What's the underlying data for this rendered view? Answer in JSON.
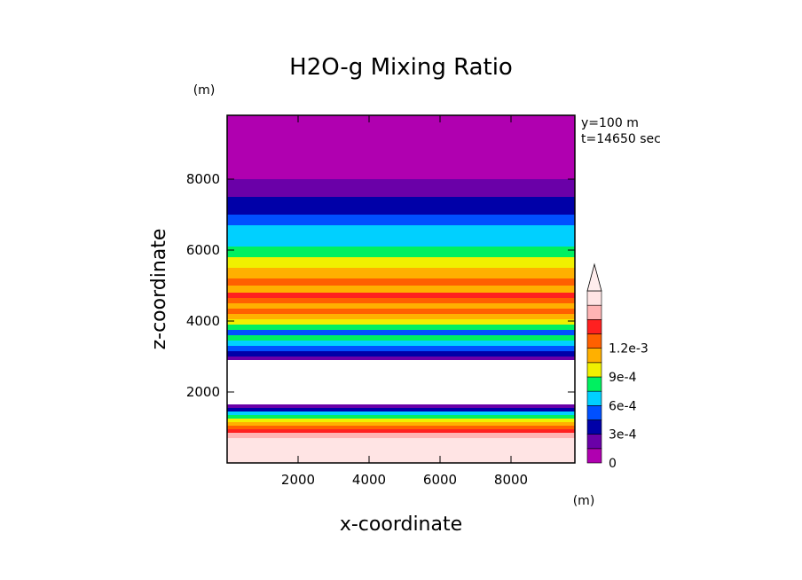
{
  "chart_data": {
    "type": "heatmap",
    "title": "H2O-g Mixing Ratio",
    "xlabel": "x-coordinate",
    "ylabel": "z-coordinate",
    "x_unit": "(m)",
    "y_unit": "(m)",
    "annotations": [
      "y=100 m",
      "t=14650 sec"
    ],
    "xlim": [
      0,
      9800
    ],
    "ylim": [
      0,
      9800
    ],
    "x_ticks": [
      2000,
      4000,
      6000,
      8000
    ],
    "x_tick_labels": [
      "2000",
      "4000",
      "6000",
      "8000"
    ],
    "y_ticks": [
      2000,
      4000,
      6000,
      8000
    ],
    "y_tick_labels": [
      "2000",
      "4000",
      "6000",
      "8000"
    ],
    "grid": false,
    "colorbar": {
      "position": "right",
      "extend": "max",
      "levels": [
        0,
        0.00015,
        0.0003,
        0.00045,
        0.0006,
        0.00075,
        0.0009,
        0.00105,
        0.0012
      ],
      "colors": [
        "#b000b0",
        "#6a00a8",
        "#0000a8",
        "#0050ff",
        "#00d0ff",
        "#00f060",
        "#f0f000",
        "#ffb000",
        "#ff6000",
        "#ff2020",
        "#ffb4b4",
        "#ffe4e4"
      ],
      "tick_values": [
        0,
        0.0003,
        0.0006,
        0.0009,
        0.0012
      ],
      "tick_labels": [
        "0",
        "3e-4",
        "6e-4",
        "9e-4",
        "1.2e-3"
      ]
    },
    "bands": [
      {
        "z": [
          0,
          700
        ],
        "level": 11
      },
      {
        "z": [
          700,
          850
        ],
        "level": 10
      },
      {
        "z": [
          850,
          950
        ],
        "level": 9
      },
      {
        "z": [
          950,
          1050
        ],
        "level": 8
      },
      {
        "z": [
          1050,
          1150
        ],
        "level": 7
      },
      {
        "z": [
          1150,
          1250
        ],
        "level": 6
      },
      {
        "z": [
          1250,
          1350
        ],
        "level": 5
      },
      {
        "z": [
          1350,
          1450
        ],
        "level": 4
      },
      {
        "z": [
          1450,
          1550
        ],
        "level": 2
      },
      {
        "z": [
          1550,
          1650
        ],
        "level": 1
      },
      {
        "z": [
          1650,
          2900
        ],
        "level": null
      },
      {
        "z": [
          2900,
          3000
        ],
        "level": 1
      },
      {
        "z": [
          3000,
          3150
        ],
        "level": 2
      },
      {
        "z": [
          3150,
          3300
        ],
        "level": 3
      },
      {
        "z": [
          3300,
          3450
        ],
        "level": 4
      },
      {
        "z": [
          3450,
          3600
        ],
        "level": 5
      },
      {
        "z": [
          3600,
          3750
        ],
        "level": 3
      },
      {
        "z": [
          3750,
          3900
        ],
        "level": 5
      },
      {
        "z": [
          3900,
          4050
        ],
        "level": 6
      },
      {
        "z": [
          4050,
          4200
        ],
        "level": 7
      },
      {
        "z": [
          4200,
          4350
        ],
        "level": 8
      },
      {
        "z": [
          4350,
          4500
        ],
        "level": 7
      },
      {
        "z": [
          4500,
          4650
        ],
        "level": 8
      },
      {
        "z": [
          4650,
          4800
        ],
        "level": 9
      },
      {
        "z": [
          4800,
          5000
        ],
        "level": 7
      },
      {
        "z": [
          5000,
          5200
        ],
        "level": 8
      },
      {
        "z": [
          5200,
          5500
        ],
        "level": 7
      },
      {
        "z": [
          5500,
          5800
        ],
        "level": 6
      },
      {
        "z": [
          5800,
          6100
        ],
        "level": 5
      },
      {
        "z": [
          6100,
          6400
        ],
        "level": 4
      },
      {
        "z": [
          6400,
          6700
        ],
        "level": 4
      },
      {
        "z": [
          6700,
          7000
        ],
        "level": 3
      },
      {
        "z": [
          7000,
          7500
        ],
        "level": 2
      },
      {
        "z": [
          7500,
          8000
        ],
        "level": 1
      },
      {
        "z": [
          8000,
          9800
        ],
        "level": 0
      }
    ]
  }
}
